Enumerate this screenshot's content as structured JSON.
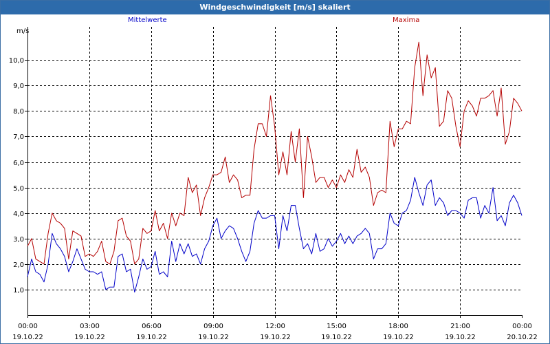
{
  "window": {
    "title": "Windgeschwindigkeit [m/s] skaliert"
  },
  "legend": {
    "series1": "Mittelwerte",
    "series2": "Maxima"
  },
  "colors": {
    "mittelwerte": "#0000c8",
    "maxima": "#b40000",
    "grid": "#000000",
    "titlebar": "#2d6bab"
  },
  "chart_data": {
    "type": "line",
    "title": "Windgeschwindigkeit [m/s] skaliert",
    "ylabel": "m/s",
    "xlabel": "",
    "ylim": [
      0,
      11.3
    ],
    "xlim": [
      0,
      24
    ],
    "grid": true,
    "legend_placement": "top",
    "y_ticks": [
      "1,0",
      "2,0",
      "3,0",
      "4,0",
      "5,0",
      "6,0",
      "7,0",
      "8,0",
      "9,0",
      "10,0"
    ],
    "y_tick_values": [
      1,
      2,
      3,
      4,
      5,
      6,
      7,
      8,
      9,
      10
    ],
    "x_ticks": [
      {
        "time": "00:00",
        "date": "19.10.22",
        "h": 0
      },
      {
        "time": "03:00",
        "date": "19.10.22",
        "h": 3
      },
      {
        "time": "06:00",
        "date": "19.10.22",
        "h": 6
      },
      {
        "time": "09:00",
        "date": "19.10.22",
        "h": 9
      },
      {
        "time": "12:00",
        "date": "19.10.22",
        "h": 12
      },
      {
        "time": "15:00",
        "date": "19.10.22",
        "h": 15
      },
      {
        "time": "18:00",
        "date": "19.10.22",
        "h": 18
      },
      {
        "time": "21:00",
        "date": "19.10.22",
        "h": 21
      },
      {
        "time": "00:00",
        "date": "20.10.22",
        "h": 24
      }
    ],
    "series": [
      {
        "name": "Mittelwerte",
        "color": "#0000c8",
        "x": [
          0,
          0.2,
          0.4,
          0.6,
          0.8,
          1.0,
          1.2,
          1.4,
          1.6,
          1.8,
          2.0,
          2.2,
          2.4,
          2.6,
          2.8,
          3.0,
          3.2,
          3.4,
          3.6,
          3.8,
          4.0,
          4.2,
          4.4,
          4.6,
          4.8,
          5.0,
          5.2,
          5.4,
          5.6,
          5.8,
          6.0,
          6.2,
          6.4,
          6.6,
          6.8,
          7.0,
          7.2,
          7.4,
          7.6,
          7.8,
          8.0,
          8.2,
          8.4,
          8.6,
          8.8,
          9.0,
          9.2,
          9.4,
          9.6,
          9.8,
          10.0,
          10.2,
          10.4,
          10.6,
          10.8,
          11.0,
          11.2,
          11.4,
          11.6,
          11.8,
          12.0,
          12.2,
          12.4,
          12.6,
          12.8,
          13.0,
          13.2,
          13.4,
          13.6,
          13.8,
          14.0,
          14.2,
          14.4,
          14.6,
          14.8,
          15.0,
          15.2,
          15.4,
          15.6,
          15.8,
          16.0,
          16.2,
          16.4,
          16.6,
          16.8,
          17.0,
          17.2,
          17.4,
          17.6,
          17.8,
          18.0,
          18.2,
          18.4,
          18.6,
          18.8,
          19.0,
          19.2,
          19.4,
          19.6,
          19.8,
          20.0,
          20.2,
          20.4,
          20.6,
          20.8,
          21.0,
          21.2,
          21.4,
          21.6,
          21.8,
          22.0,
          22.2,
          22.4,
          22.6,
          22.8,
          23.0,
          23.2,
          23.4,
          23.6,
          23.8,
          24.0
        ],
        "values": [
          1.5,
          2.2,
          1.7,
          1.6,
          1.3,
          2.0,
          3.2,
          2.8,
          2.6,
          2.3,
          1.7,
          2.1,
          2.6,
          2.2,
          1.8,
          1.7,
          1.7,
          1.6,
          1.7,
          1.0,
          1.1,
          1.1,
          2.3,
          2.4,
          1.7,
          1.8,
          0.9,
          1.5,
          2.2,
          1.8,
          1.9,
          2.5,
          1.6,
          1.7,
          1.5,
          2.9,
          2.1,
          2.8,
          2.4,
          2.8,
          2.3,
          2.4,
          2.0,
          2.6,
          2.9,
          3.5,
          3.8,
          3.0,
          3.3,
          3.5,
          3.4,
          3.0,
          2.5,
          2.1,
          2.5,
          3.6,
          4.1,
          3.8,
          3.8,
          3.9,
          3.9,
          2.6,
          3.9,
          3.3,
          4.3,
          4.3,
          3.4,
          2.6,
          2.8,
          2.4,
          3.2,
          2.5,
          2.6,
          3.0,
          2.7,
          2.9,
          3.2,
          2.8,
          3.1,
          2.8,
          3.1,
          3.2,
          3.4,
          3.2,
          2.2,
          2.6,
          2.6,
          2.8,
          4.0,
          3.6,
          3.5,
          4.0,
          4.1,
          4.5,
          5.4,
          4.8,
          4.3,
          5.1,
          5.3,
          4.3,
          4.6,
          4.4,
          3.9,
          4.1,
          4.1,
          4.0,
          3.8,
          4.5,
          4.6,
          4.6,
          3.8,
          4.3,
          4.0,
          5.0,
          3.7,
          3.9,
          3.5,
          4.4,
          4.7,
          4.4,
          3.9
        ]
      },
      {
        "name": "Maxima",
        "color": "#b40000",
        "x": [
          0,
          0.2,
          0.4,
          0.6,
          0.8,
          1.0,
          1.2,
          1.4,
          1.6,
          1.8,
          2.0,
          2.2,
          2.4,
          2.6,
          2.8,
          3.0,
          3.2,
          3.4,
          3.6,
          3.8,
          4.0,
          4.2,
          4.4,
          4.6,
          4.8,
          5.0,
          5.2,
          5.4,
          5.6,
          5.8,
          6.0,
          6.2,
          6.4,
          6.6,
          6.8,
          7.0,
          7.2,
          7.4,
          7.6,
          7.8,
          8.0,
          8.2,
          8.4,
          8.6,
          8.8,
          9.0,
          9.2,
          9.4,
          9.6,
          9.8,
          10.0,
          10.2,
          10.4,
          10.6,
          10.8,
          11.0,
          11.2,
          11.4,
          11.6,
          11.8,
          12.0,
          12.2,
          12.4,
          12.6,
          12.8,
          13.0,
          13.2,
          13.4,
          13.6,
          13.8,
          14.0,
          14.2,
          14.4,
          14.6,
          14.8,
          15.0,
          15.2,
          15.4,
          15.6,
          15.8,
          16.0,
          16.2,
          16.4,
          16.6,
          16.8,
          17.0,
          17.2,
          17.4,
          17.6,
          17.8,
          18.0,
          18.2,
          18.4,
          18.6,
          18.8,
          19.0,
          19.2,
          19.4,
          19.6,
          19.8,
          20.0,
          20.2,
          20.4,
          20.6,
          20.8,
          21.0,
          21.2,
          21.4,
          21.6,
          21.8,
          22.0,
          22.2,
          22.4,
          22.6,
          22.8,
          23.0,
          23.2,
          23.4,
          23.6,
          23.8,
          24.0
        ],
        "values": [
          2.7,
          3.0,
          2.2,
          2.1,
          2.0,
          3.2,
          4.0,
          3.7,
          3.6,
          3.4,
          2.2,
          3.3,
          3.2,
          3.1,
          2.3,
          2.4,
          2.3,
          2.5,
          2.9,
          2.1,
          2.0,
          2.5,
          3.7,
          3.8,
          3.1,
          2.9,
          2.0,
          2.2,
          3.4,
          3.2,
          3.3,
          4.1,
          3.3,
          3.6,
          3.0,
          4.0,
          3.5,
          4.0,
          3.9,
          5.4,
          4.8,
          5.1,
          3.9,
          4.6,
          5.0,
          5.5,
          5.5,
          5.6,
          6.2,
          5.2,
          5.5,
          5.3,
          4.6,
          4.7,
          4.7,
          6.5,
          7.5,
          7.5,
          7.0,
          8.6,
          7.4,
          5.5,
          6.4,
          5.5,
          7.2,
          6.0,
          7.3,
          4.6,
          7.0,
          6.2,
          5.2,
          5.4,
          5.4,
          5.0,
          5.3,
          5.0,
          5.5,
          5.2,
          5.7,
          5.4,
          6.5,
          5.6,
          5.8,
          5.4,
          4.3,
          4.8,
          4.9,
          4.8,
          7.6,
          6.6,
          7.3,
          7.3,
          7.6,
          7.5,
          9.7,
          10.7,
          8.6,
          10.2,
          9.3,
          9.7,
          7.4,
          7.6,
          8.8,
          8.5,
          7.4,
          6.6,
          8.0,
          8.4,
          8.2,
          7.8,
          8.5,
          8.5,
          8.6,
          8.8,
          7.8,
          8.9,
          6.7,
          7.2,
          8.5,
          8.3,
          8.0
        ]
      }
    ]
  }
}
